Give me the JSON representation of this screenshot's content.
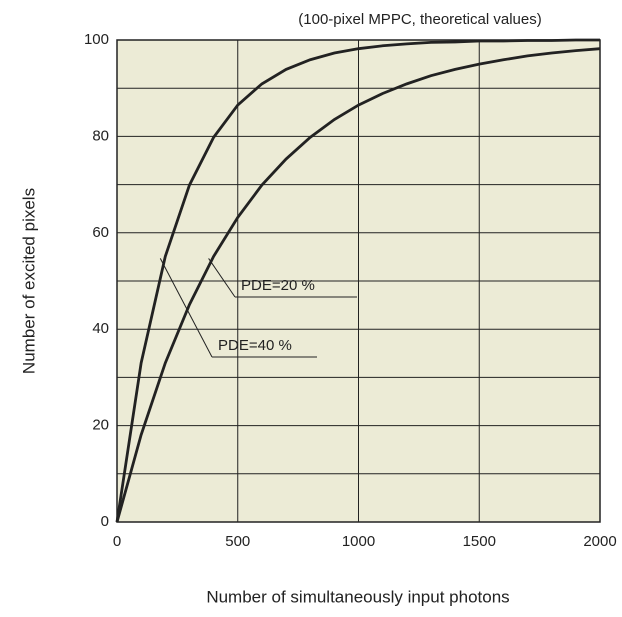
{
  "chart_data": {
    "type": "line",
    "annotation": "(100-pixel MPPC, theoretical values)",
    "xlabel": "Number of simultaneously input photons",
    "ylabel": "Number of excited pixels",
    "x": [
      0,
      100,
      200,
      300,
      400,
      500,
      600,
      700,
      800,
      900,
      1000,
      1100,
      1200,
      1300,
      1400,
      1500,
      1600,
      1700,
      1800,
      1900,
      2000
    ],
    "series": [
      {
        "name": "PDE=40 %",
        "color": "#222222",
        "values": [
          0,
          33.0,
          55.1,
          69.9,
          79.8,
          86.5,
          90.9,
          93.9,
          95.9,
          97.3,
          98.2,
          98.8,
          99.2,
          99.5,
          99.6,
          99.8,
          99.8,
          99.9,
          99.9,
          100.0,
          100.0
        ]
      },
      {
        "name": "PDE=20 %",
        "color": "#222222",
        "values": [
          0,
          18.1,
          33.0,
          45.1,
          55.1,
          63.2,
          69.9,
          75.3,
          79.8,
          83.5,
          86.5,
          88.9,
          90.9,
          92.6,
          93.9,
          95.0,
          95.9,
          96.7,
          97.3,
          97.8,
          98.2
        ]
      }
    ],
    "xlim": [
      0,
      2000
    ],
    "xticks": [
      0,
      500,
      1000,
      1500,
      2000
    ],
    "ylim": [
      0,
      100
    ],
    "yticks": [
      0,
      20,
      40,
      60,
      80,
      100
    ],
    "yminorticks": [
      10,
      30,
      50,
      70,
      90
    ],
    "grid": true,
    "background": "#ecebd6"
  }
}
